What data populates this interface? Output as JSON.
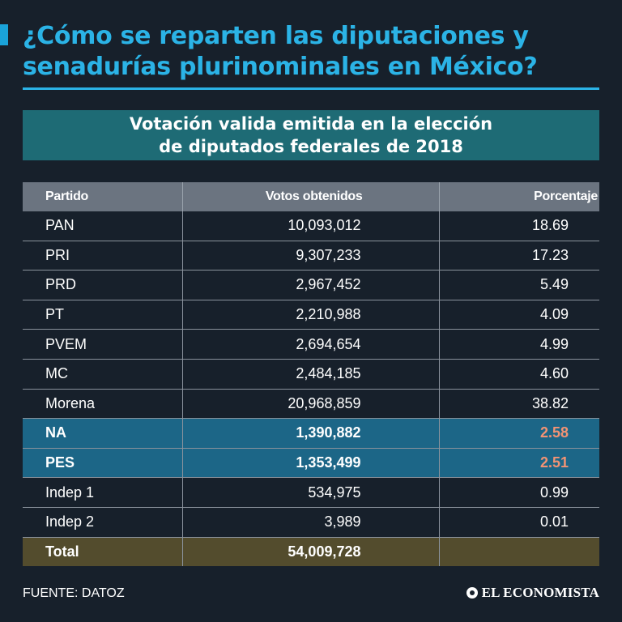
{
  "title": "¿Cómo se reparten las diputaciones y senadurías plurinominales en México?",
  "subtitle": "Votación valida emitida en la elección\nde diputados federales de 2018",
  "table": {
    "headers": [
      "Partido",
      "Votos obtenidos",
      "Porcentaje"
    ],
    "rows": [
      {
        "party": "PAN",
        "votes": "10,093,012",
        "percent": "18.69"
      },
      {
        "party": "PRI",
        "votes": "9,307,233",
        "percent": "17.23"
      },
      {
        "party": "PRD",
        "votes": "2,967,452",
        "percent": "5.49"
      },
      {
        "party": "PT",
        "votes": "2,210,988",
        "percent": "4.09"
      },
      {
        "party": "PVEM",
        "votes": "2,694,654",
        "percent": "4.99"
      },
      {
        "party": "MC",
        "votes": "2,484,185",
        "percent": "4.60"
      },
      {
        "party": "Morena",
        "votes": "20,968,859",
        "percent": "38.82"
      },
      {
        "party": "NA",
        "votes": "1,390,882",
        "percent": "2.58",
        "highlight": true
      },
      {
        "party": "PES",
        "votes": "1,353,499",
        "percent": "2.51",
        "highlight": true
      },
      {
        "party": "Indep 1",
        "votes": "534,975",
        "percent": "0.99"
      },
      {
        "party": "Indep 2",
        "votes": "3,989",
        "percent": "0.01"
      }
    ],
    "total": {
      "label": "Total",
      "votes": "54,009,728",
      "percent": ""
    }
  },
  "source": "FUENTE: DATOZ",
  "brand": "EL ECONOMISTA",
  "colors": {
    "background": "#17202b",
    "title": "#2bb3e6",
    "subtitle_box": "#1e6b75",
    "header": "#6b7480",
    "highlight_row": "#1c6687",
    "highlight_percent": "#f29374",
    "total_row": "#534c2d"
  }
}
